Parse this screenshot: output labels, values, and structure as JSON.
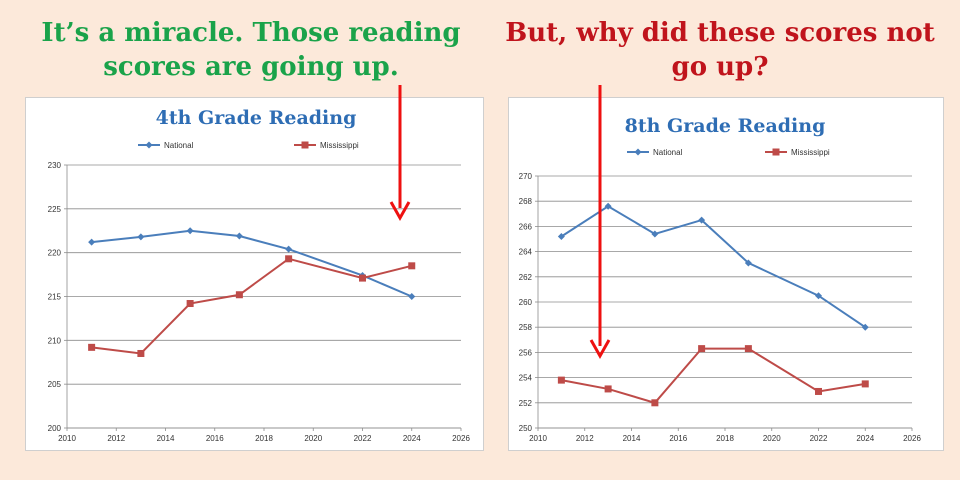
{
  "headlines": {
    "left": "It’s a miracle. Those reading scores are going up.",
    "right": "But, why did these scores not go up?"
  },
  "colors": {
    "background": "#fce9da",
    "headline_left": "#1aa34a",
    "headline_right": "#c0141c",
    "national": "#4a7ebb",
    "mississippi": "#be4b48",
    "arrow": "#ee1111",
    "title": "#2e6db4"
  },
  "arrows": [
    {
      "icon": "red-down-arrow-icon",
      "points_to": "4th grade 2024 Mississippi"
    },
    {
      "icon": "red-down-arrow-icon",
      "points_to": "8th grade 2013 Mississippi"
    }
  ],
  "chart_data": [
    {
      "type": "line",
      "title": "4th Grade Reading",
      "xlim": [
        2010,
        2026
      ],
      "xticks": [
        2010,
        2012,
        2014,
        2016,
        2018,
        2020,
        2022,
        2024,
        2026
      ],
      "ylim": [
        200,
        230
      ],
      "yticks": [
        200,
        205,
        210,
        215,
        220,
        225,
        230
      ],
      "grid": "horizontal",
      "legend_position": "top",
      "series": [
        {
          "name": "National",
          "marker": "diamond",
          "color": "#4a7ebb",
          "x": [
            2011,
            2013,
            2015,
            2017,
            2019,
            2022,
            2024
          ],
          "y": [
            221.2,
            221.8,
            222.5,
            221.9,
            220.4,
            217.4,
            215
          ]
        },
        {
          "name": "Mississippi",
          "marker": "square",
          "color": "#be4b48",
          "x": [
            2011,
            2013,
            2015,
            2017,
            2019,
            2022,
            2024
          ],
          "y": [
            209.2,
            208.5,
            214.2,
            215.2,
            219.3,
            217.1,
            218.5
          ]
        }
      ]
    },
    {
      "type": "line",
      "title": "8th Grade Reading",
      "xlim": [
        2010,
        2026
      ],
      "xticks": [
        2010,
        2012,
        2014,
        2016,
        2018,
        2020,
        2022,
        2024,
        2026
      ],
      "ylim": [
        250,
        270
      ],
      "yticks": [
        250,
        252,
        254,
        256,
        258,
        260,
        262,
        264,
        266,
        268,
        270
      ],
      "grid": "horizontal",
      "legend_position": "top",
      "series": [
        {
          "name": "National",
          "marker": "diamond",
          "color": "#4a7ebb",
          "x": [
            2011,
            2013,
            2015,
            2017,
            2019,
            2022,
            2024
          ],
          "y": [
            265.2,
            267.6,
            265.4,
            266.5,
            263.1,
            260.5,
            258
          ]
        },
        {
          "name": "Mississippi",
          "marker": "square",
          "color": "#be4b48",
          "x": [
            2011,
            2013,
            2015,
            2017,
            2019,
            2022,
            2024
          ],
          "y": [
            253.8,
            253.1,
            252,
            256.3,
            256.3,
            252.9,
            253.5
          ]
        }
      ]
    }
  ]
}
